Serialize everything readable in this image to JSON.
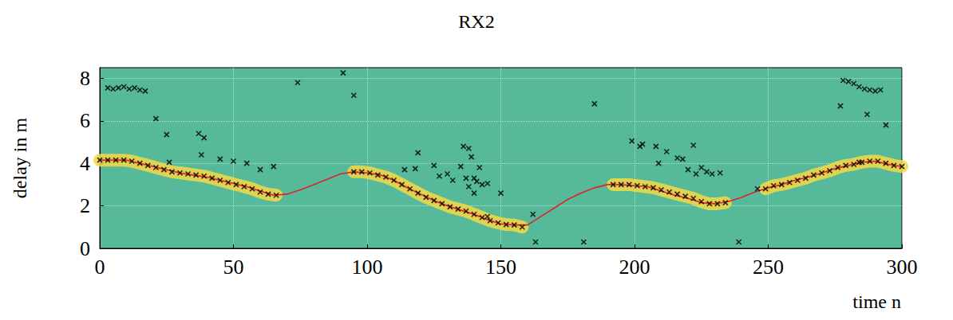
{
  "chart_data": {
    "type": "scatter",
    "title": "RX2",
    "xlabel": "time n",
    "ylabel": "delay in m",
    "xlim": [
      0,
      300
    ],
    "xticks": [
      0,
      50,
      100,
      150,
      200,
      250,
      300
    ],
    "ylim": [
      0,
      8.5
    ],
    "yticks": [
      0,
      2,
      4,
      6,
      8
    ],
    "grid": true,
    "series": [
      {
        "type": "scatter",
        "marker": "x",
        "color": "#000000",
        "line_style": "band",
        "x": [
          0,
          3,
          6,
          9,
          12,
          15,
          18,
          21,
          24,
          27,
          30,
          33,
          36,
          39,
          42,
          45,
          48,
          51,
          54,
          57,
          60,
          63,
          66,
          95,
          98,
          101,
          104,
          107,
          110,
          113,
          116,
          119,
          122,
          125,
          128,
          131,
          134,
          137,
          140,
          143,
          146,
          149,
          152,
          155,
          158,
          192,
          195,
          198,
          201,
          204,
          207,
          210,
          213,
          216,
          219,
          222,
          225,
          228,
          231,
          234,
          249,
          252,
          255,
          258,
          261,
          264,
          267,
          270,
          273,
          276,
          279,
          282,
          285,
          288,
          291,
          294,
          297,
          300
        ],
        "values": [
          4.15,
          4.15,
          4.15,
          4.15,
          4.1,
          4.0,
          3.9,
          3.8,
          3.7,
          3.6,
          3.55,
          3.5,
          3.45,
          3.4,
          3.3,
          3.2,
          3.1,
          3.0,
          2.9,
          2.8,
          2.65,
          2.55,
          2.5,
          3.6,
          3.6,
          3.55,
          3.45,
          3.35,
          3.2,
          3.0,
          2.8,
          2.6,
          2.4,
          2.25,
          2.1,
          1.95,
          1.85,
          1.75,
          1.6,
          1.45,
          1.3,
          1.2,
          1.12,
          1.1,
          1.0,
          3.0,
          3.0,
          3.0,
          2.95,
          2.9,
          2.85,
          2.75,
          2.65,
          2.55,
          2.45,
          2.35,
          2.2,
          2.1,
          2.1,
          2.15,
          2.8,
          2.95,
          3.0,
          3.1,
          3.2,
          3.3,
          3.45,
          3.55,
          3.65,
          3.8,
          3.9,
          3.95,
          4.05,
          4.1,
          4.1,
          4.0,
          3.9,
          3.85
        ]
      },
      {
        "type": "scatter",
        "marker": "x",
        "color": "#000000",
        "x": [
          3,
          5,
          7,
          9,
          11,
          13,
          15,
          17,
          21,
          25,
          26,
          37,
          38,
          39,
          45,
          50,
          55,
          60,
          65,
          74,
          91,
          95,
          114,
          118,
          119,
          125,
          127,
          130,
          132,
          135,
          136,
          137,
          138,
          138,
          139,
          140,
          140,
          141,
          142,
          143,
          145,
          145,
          150,
          162,
          163,
          181,
          185,
          199,
          202,
          203,
          208,
          209,
          212,
          216,
          218,
          220,
          222,
          223,
          225,
          227,
          229,
          232,
          239,
          246,
          277,
          278,
          280,
          282,
          284,
          284,
          286,
          287,
          288,
          290,
          292,
          294
        ],
        "values": [
          7.55,
          7.5,
          7.55,
          7.6,
          7.5,
          7.55,
          7.45,
          7.4,
          6.1,
          5.35,
          4.05,
          5.4,
          4.4,
          5.2,
          4.2,
          4.1,
          4.0,
          3.7,
          3.85,
          7.8,
          8.25,
          7.2,
          3.7,
          3.75,
          4.5,
          3.9,
          3.4,
          3.5,
          3.2,
          3.85,
          4.8,
          3.3,
          4.7,
          2.9,
          4.3,
          3.3,
          2.6,
          3.15,
          3.8,
          3.0,
          3.05,
          1.5,
          2.6,
          1.6,
          0.3,
          0.3,
          6.8,
          5.05,
          4.8,
          4.9,
          4.8,
          4.0,
          4.55,
          4.25,
          4.2,
          3.7,
          4.85,
          3.5,
          3.8,
          3.6,
          3.5,
          3.55,
          0.3,
          2.8,
          6.7,
          7.9,
          7.85,
          7.75,
          7.6,
          4.05,
          7.5,
          6.3,
          7.45,
          7.4,
          7.45,
          5.8
        ]
      },
      {
        "type": "line",
        "color": "#d9262b",
        "x": [
          0,
          5,
          10,
          15,
          20,
          25,
          30,
          35,
          40,
          45,
          50,
          55,
          60,
          65,
          70,
          75,
          80,
          85,
          90,
          95,
          100,
          105,
          110,
          115,
          120,
          125,
          130,
          135,
          140,
          145,
          150,
          155,
          160,
          165,
          170,
          175,
          180,
          185,
          190,
          195,
          200,
          205,
          210,
          215,
          220,
          225,
          230,
          235,
          240,
          245,
          250,
          255,
          260,
          265,
          270,
          275,
          280,
          285,
          290,
          295,
          300
        ],
        "values": [
          4.15,
          4.15,
          4.15,
          4.0,
          3.85,
          3.7,
          3.55,
          3.45,
          3.35,
          3.2,
          3.05,
          2.9,
          2.7,
          2.5,
          2.55,
          2.75,
          3.0,
          3.25,
          3.5,
          3.6,
          3.55,
          3.45,
          3.2,
          2.85,
          2.55,
          2.25,
          2.0,
          1.8,
          1.6,
          1.35,
          1.15,
          1.1,
          1.1,
          1.5,
          1.9,
          2.3,
          2.6,
          2.85,
          3.0,
          3.0,
          2.95,
          2.9,
          2.7,
          2.5,
          2.35,
          2.15,
          2.1,
          2.2,
          2.4,
          2.65,
          2.85,
          3.0,
          3.2,
          3.35,
          3.55,
          3.75,
          3.9,
          4.05,
          4.1,
          3.95,
          3.85
        ]
      }
    ]
  }
}
